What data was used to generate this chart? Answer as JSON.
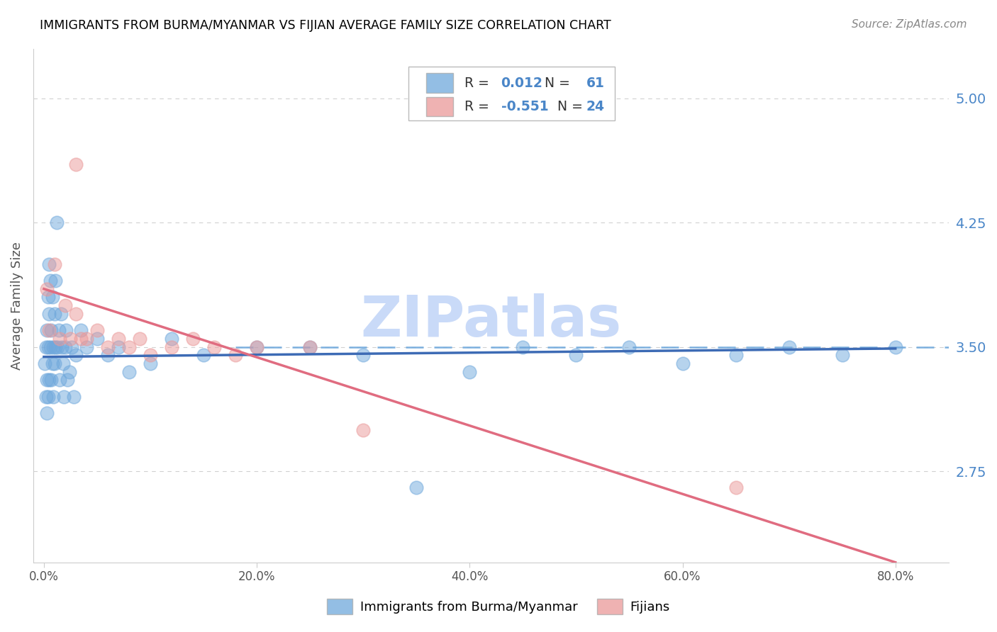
{
  "title": "IMMIGRANTS FROM BURMA/MYANMAR VS FIJIAN AVERAGE FAMILY SIZE CORRELATION CHART",
  "source": "Source: ZipAtlas.com",
  "ylabel": "Average Family Size",
  "xlabel_ticks": [
    "0.0%",
    "20.0%",
    "40.0%",
    "60.0%",
    "80.0%"
  ],
  "xlabel_vals": [
    0,
    20,
    40,
    60,
    80
  ],
  "yticks_right": [
    2.75,
    3.5,
    4.25,
    5.0
  ],
  "ylim": [
    2.2,
    5.3
  ],
  "xlim": [
    -1,
    85
  ],
  "blue_r": "0.012",
  "blue_n": "61",
  "pink_r": "-0.551",
  "pink_n": "24",
  "blue_color": "#6fa8dc",
  "pink_color": "#ea9999",
  "blue_scatter_x": [
    0.1,
    0.2,
    0.2,
    0.3,
    0.3,
    0.3,
    0.4,
    0.4,
    0.4,
    0.5,
    0.5,
    0.5,
    0.6,
    0.6,
    0.7,
    0.7,
    0.8,
    0.8,
    0.9,
    0.9,
    1.0,
    1.0,
    1.1,
    1.1,
    1.2,
    1.3,
    1.4,
    1.5,
    1.6,
    1.7,
    1.8,
    1.9,
    2.0,
    2.1,
    2.2,
    2.4,
    2.6,
    2.8,
    3.0,
    3.5,
    4.0,
    5.0,
    6.0,
    7.0,
    8.0,
    10.0,
    12.0,
    15.0,
    20.0,
    25.0,
    30.0,
    35.0,
    40.0,
    45.0,
    50.0,
    55.0,
    60.0,
    65.0,
    70.0,
    75.0,
    80.0
  ],
  "blue_scatter_y": [
    3.4,
    3.5,
    3.2,
    3.6,
    3.3,
    3.1,
    3.8,
    3.5,
    3.2,
    4.0,
    3.7,
    3.3,
    3.9,
    3.5,
    3.6,
    3.3,
    3.8,
    3.4,
    3.5,
    3.2,
    3.7,
    3.4,
    3.9,
    3.5,
    4.25,
    3.5,
    3.6,
    3.3,
    3.7,
    3.5,
    3.4,
    3.2,
    3.5,
    3.6,
    3.3,
    3.35,
    3.5,
    3.2,
    3.45,
    3.6,
    3.5,
    3.55,
    3.45,
    3.5,
    3.35,
    3.4,
    3.55,
    3.45,
    3.5,
    3.5,
    3.45,
    2.65,
    3.35,
    3.5,
    3.45,
    3.5,
    3.4,
    3.45,
    3.5,
    3.45,
    3.5
  ],
  "pink_scatter_x": [
    0.3,
    0.5,
    1.0,
    1.5,
    2.0,
    2.5,
    3.0,
    3.5,
    4.0,
    5.0,
    6.0,
    7.0,
    8.0,
    9.0,
    10.0,
    12.0,
    14.0,
    16.0,
    18.0,
    20.0,
    25.0,
    30.0,
    3.0,
    65.0
  ],
  "pink_scatter_y": [
    3.85,
    3.6,
    4.0,
    3.55,
    3.75,
    3.55,
    3.7,
    3.55,
    3.55,
    3.6,
    3.5,
    3.55,
    3.5,
    3.55,
    3.45,
    3.5,
    3.55,
    3.5,
    3.45,
    3.5,
    3.5,
    3.0,
    4.6,
    2.65
  ],
  "blue_trend_x": [
    0,
    80
  ],
  "blue_trend_y": [
    3.44,
    3.49
  ],
  "pink_trend_x": [
    0,
    80
  ],
  "pink_trend_y": [
    3.85,
    2.2
  ],
  "dashed_line_y": 3.5,
  "watermark": "ZIPatlas",
  "watermark_color": "#c9daf8",
  "legend_label_blue": "Immigrants from Burma/Myanmar",
  "legend_label_pink": "Fijians",
  "title_color": "#000000",
  "axis_label_color": "#4a86c8",
  "grid_color": "#cccccc",
  "legend_r_color": "#000000",
  "legend_n_color": "#000000"
}
